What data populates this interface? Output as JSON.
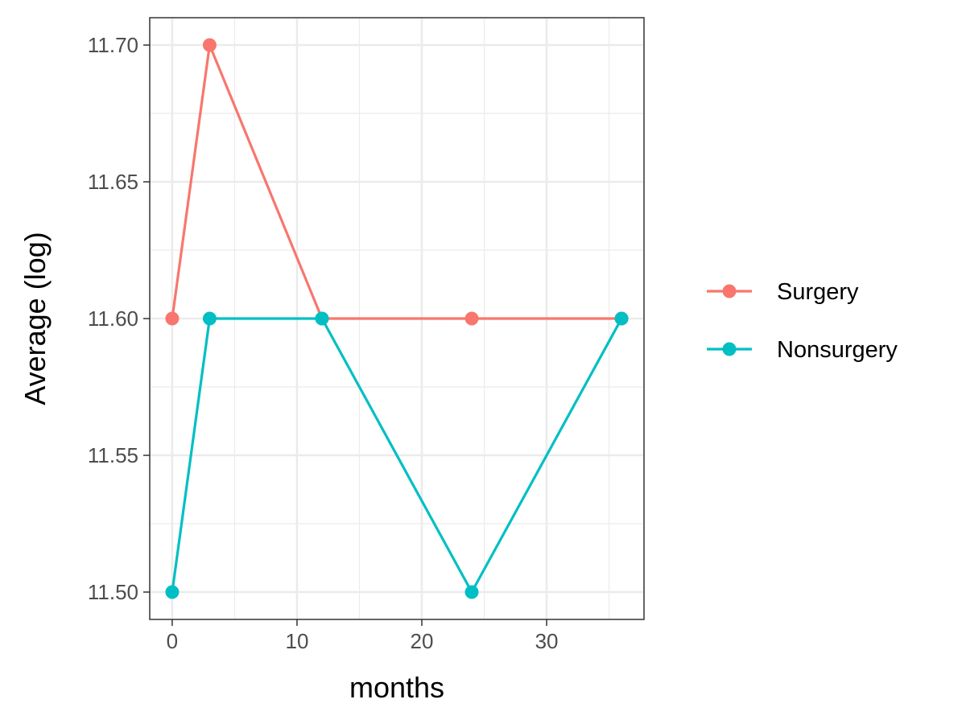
{
  "chart_data": {
    "type": "line",
    "xlabel": "months",
    "ylabel": "Average (log)",
    "xlim": [
      -1.8,
      37.8
    ],
    "ylim": [
      11.49,
      11.71
    ],
    "x_ticks": [
      0,
      10,
      20,
      30
    ],
    "x_tick_labels": [
      "0",
      "10",
      "20",
      "30"
    ],
    "y_ticks": [
      11.5,
      11.55,
      11.6,
      11.65,
      11.7
    ],
    "y_tick_labels": [
      "11.50",
      "11.55",
      "11.60",
      "11.65",
      "11.70"
    ],
    "grid": true,
    "legend_position": "right",
    "series": [
      {
        "name": "Surgery",
        "color": "#F8766D",
        "x": [
          0,
          3,
          12,
          24,
          36
        ],
        "y": [
          11.6,
          11.7,
          11.6,
          11.6,
          11.6
        ]
      },
      {
        "name": "Nonsurgery",
        "color": "#00BFC4",
        "x": [
          0,
          3,
          12,
          24,
          36
        ],
        "y": [
          11.5,
          11.6,
          11.6,
          11.5,
          11.6
        ]
      }
    ]
  }
}
